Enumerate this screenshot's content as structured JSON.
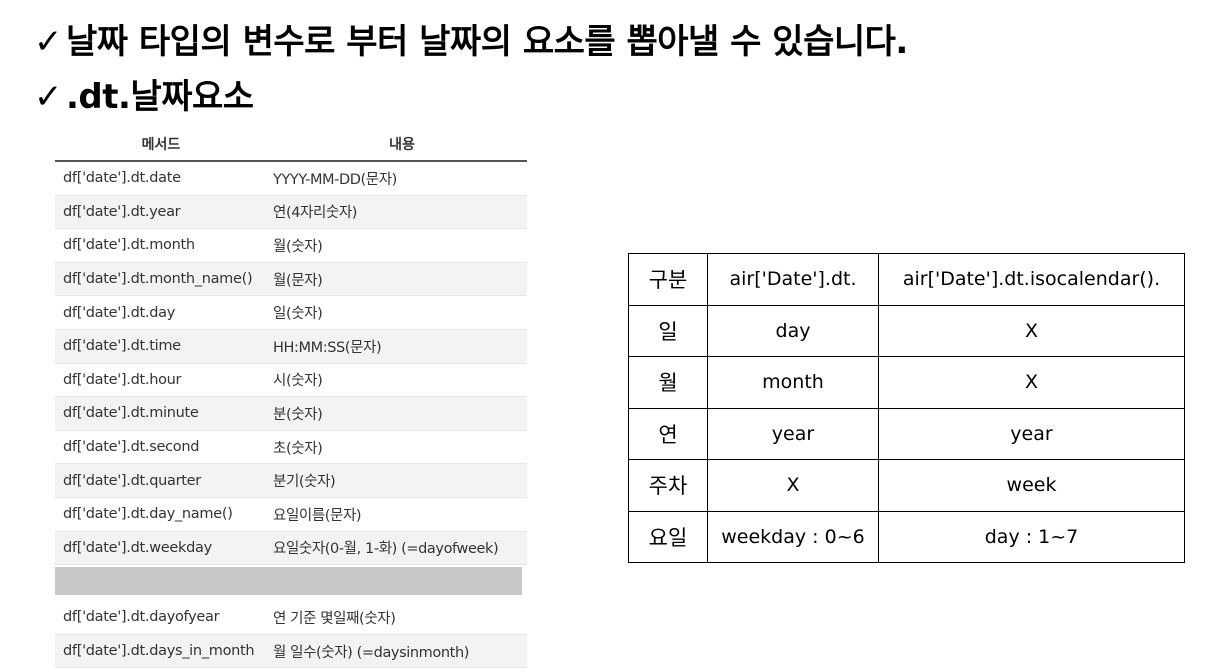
{
  "heading": {
    "line1": "날짜 타입의 변수로 부터 날짜의 요소를 뽑아낼 수 있습니다.",
    "line2": ".dt.날짜요소",
    "check": "✓"
  },
  "method_table": {
    "header": [
      "메서드",
      "내용"
    ],
    "rows": [
      [
        "df['date'].dt.date",
        "YYYY-MM-DD(문자)"
      ],
      [
        "df['date'].dt.year",
        "연(4자리숫자)"
      ],
      [
        "df['date'].dt.month",
        "월(숫자)"
      ],
      [
        "df['date'].dt.month_name()",
        "월(문자)"
      ],
      [
        "df['date'].dt.day",
        "일(숫자)"
      ],
      [
        "df['date'].dt.time",
        "HH:MM:SS(문자)"
      ],
      [
        "df['date'].dt.hour",
        "시(숫자)"
      ],
      [
        "df['date'].dt.minute",
        "분(숫자)"
      ],
      [
        "df['date'].dt.second",
        "초(숫자)"
      ],
      [
        "df['date'].dt.quarter",
        "분기(숫자)"
      ],
      [
        "df['date'].dt.day_name()",
        "요일이름(문자)"
      ],
      [
        "df['date'].dt.weekday",
        "요일숫자(0-월, 1-화) (=dayofweek)"
      ]
    ],
    "rows_after_gap": [
      [
        "df['date'].dt.dayofyear",
        "연 기준 몇일째(숫자)"
      ],
      [
        "df['date'].dt.days_in_month",
        "월 일수(숫자) (=daysinmonth)"
      ]
    ]
  },
  "compare_table": {
    "header": [
      "구분",
      "air['Date'].dt.",
      "air['Date'].dt.isocalendar()."
    ],
    "rows": [
      [
        "일",
        "day",
        "X"
      ],
      [
        "월",
        "month",
        "X"
      ],
      [
        "연",
        "year",
        "year"
      ],
      [
        "주차",
        "X",
        "week"
      ],
      [
        "요일",
        "weekday : 0~6",
        "day : 1~7"
      ]
    ]
  }
}
